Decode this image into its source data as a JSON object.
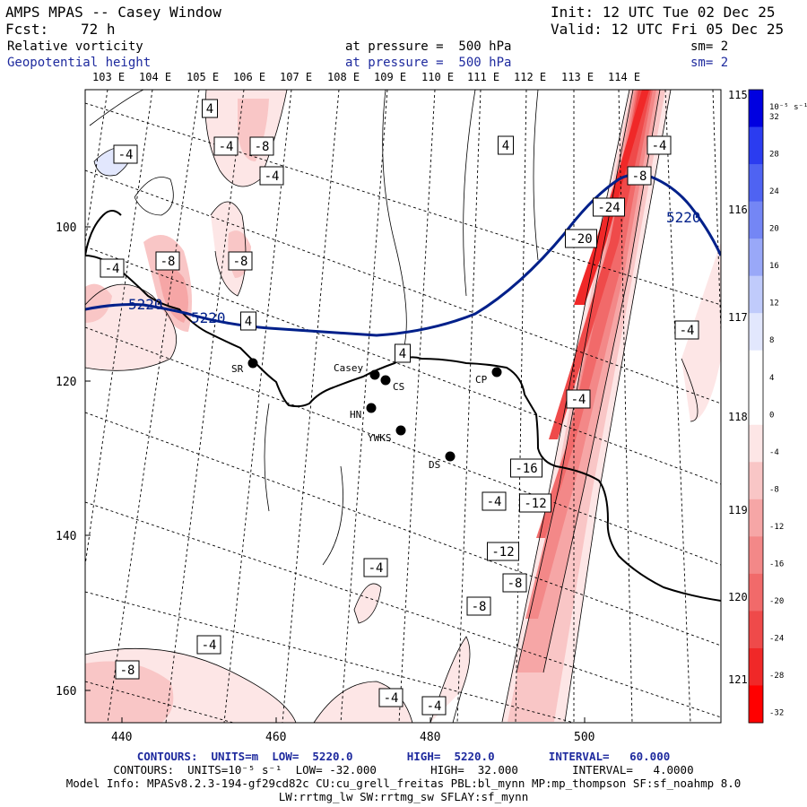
{
  "header": {
    "title": "AMPS MPAS -- Casey Window",
    "init": "Init: 12 UTC Tue 02 Dec 25",
    "fcst_label": "Fcst:",
    "fcst_value": "72 h",
    "valid": "Valid: 12 UTC Fri 05 Dec 25",
    "field1": "Relative vorticity",
    "field2": "Geopotential height",
    "pressure1": "at pressure =  500 hPa",
    "pressure2": "at pressure =  500 hPa",
    "sm1": "sm= 2",
    "sm2": "sm= 2"
  },
  "map": {
    "top_lon_labels": [
      "103 E",
      "104 E",
      "105 E",
      "106 E",
      "107 E",
      "108 E",
      "109 E",
      "110 E",
      "111 E",
      "112 E",
      "113 E",
      "114 E"
    ],
    "right_lon_labels": [
      "115 E",
      "116 E",
      "117 E",
      "118 E",
      "119 E",
      "120 E",
      "121 E"
    ],
    "left_y_ticks": [
      "100",
      "120",
      "140",
      "160"
    ],
    "bottom_x_ticks": [
      "440",
      "460",
      "480",
      "500"
    ],
    "height_contour_label": "5220",
    "stations": [
      {
        "name": "SR"
      },
      {
        "name": "Casey"
      },
      {
        "name": "CS"
      },
      {
        "name": "HN"
      },
      {
        "name": "YWKS"
      },
      {
        "name": "DS"
      },
      {
        "name": "CP"
      }
    ],
    "vorticity_labels": [
      "4",
      "-4",
      "-8",
      "-4",
      "4",
      "-4",
      "-8",
      "-24",
      "-20",
      "-4",
      "-8",
      "-8",
      "4",
      "4",
      "-4",
      "-4",
      "-16",
      "-12",
      "-4",
      "-12",
      "-8",
      "-4",
      "-8",
      "-4",
      "-8",
      "-4",
      "-4",
      "-4"
    ]
  },
  "colorbar": {
    "unit_label": "10⁻⁵ s⁻¹",
    "levels": [
      "32",
      "28",
      "24",
      "20",
      "16",
      "12",
      "8",
      "4",
      "0",
      "-4",
      "-8",
      "-12",
      "-16",
      "-20",
      "-24",
      "-28",
      "-32"
    ],
    "colors": [
      "#0000e0",
      "#2b3cf0",
      "#4f63f2",
      "#7486f5",
      "#99a8f8",
      "#c0cbfb",
      "#e2e7fd",
      "#ffffff",
      "#ffffff",
      "#fde6e6",
      "#f9c6c6",
      "#f6a6a6",
      "#f38888",
      "#f16a6a",
      "#ef4a4a",
      "#f02828",
      "#ff0000"
    ]
  },
  "footer": {
    "line1": "CONTOURS:  UNITS=m  LOW=  5220.0        HIGH=  5220.0        INTERVAL=   60.000",
    "line2": "CONTOURS:  UNITS=10⁻⁵ s⁻¹  LOW= -32.000        HIGH=  32.000        INTERVAL=   4.0000",
    "line3": "Model Info: MPASv8.2.3-194-gf29cd82c CU:cu_grell_freitas PBL:bl_mynn MP:mp_thompson SF:sf_noahmp 8.0",
    "line4": "LW:rrtmg_lw SW:rrtmg_sw SFLAY:sf_mynn"
  }
}
